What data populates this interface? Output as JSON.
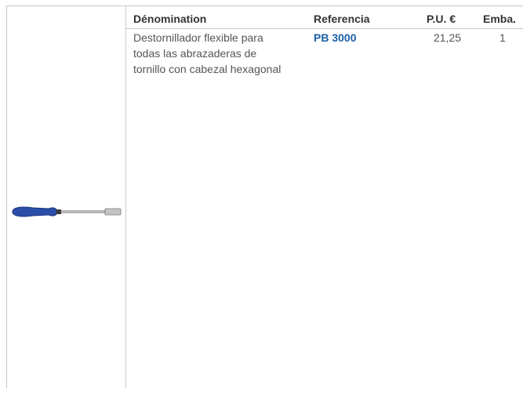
{
  "table": {
    "header": [
      "Dénomination",
      "Referencia",
      "P.U. €",
      "Emba."
    ],
    "rows": [
      {
        "description": [
          "Destornillador flexible para",
          "todas las abrazaderas de",
          "tornillo con cabezal hexagonal"
        ],
        "reference": "PB 3000",
        "price": "21,25",
        "pack": "1"
      }
    ]
  }
}
